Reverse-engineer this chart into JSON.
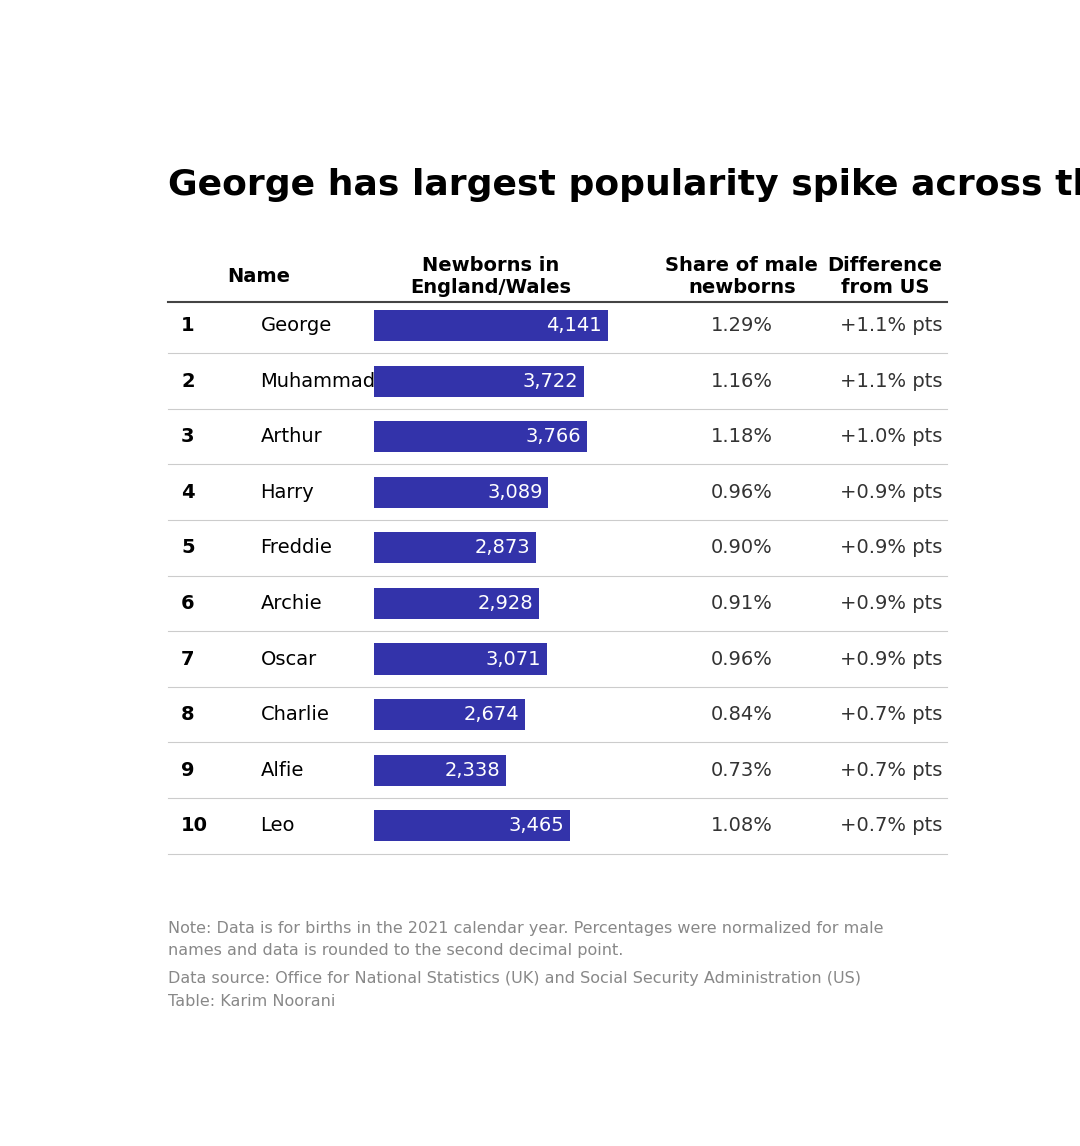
{
  "title": "George has largest popularity spike across the pond",
  "col_headers": [
    "Name",
    "Newborns in\nEngland/Wales",
    "Share of male\nnewborns",
    "Difference\nfrom US"
  ],
  "ranks": [
    1,
    2,
    3,
    4,
    5,
    6,
    7,
    8,
    9,
    10
  ],
  "names": [
    "George",
    "Muhammad",
    "Arthur",
    "Harry",
    "Freddie",
    "Archie",
    "Oscar",
    "Charlie",
    "Alfie",
    "Leo"
  ],
  "newborns": [
    4141,
    3722,
    3766,
    3089,
    2873,
    2928,
    3071,
    2674,
    2338,
    3465
  ],
  "share": [
    "1.29%",
    "1.16%",
    "1.18%",
    "0.96%",
    "0.90%",
    "0.91%",
    "0.96%",
    "0.84%",
    "0.73%",
    "1.08%"
  ],
  "difference": [
    "+1.1% pts",
    "+1.1% pts",
    "+1.0% pts",
    "+0.9% pts",
    "+0.9% pts",
    "+0.9% pts",
    "+0.9% pts",
    "+0.7% pts",
    "+0.7% pts",
    "+0.7% pts"
  ],
  "bar_color": "#3333aa",
  "bar_text_color": "#ffffff",
  "background_color": "#ffffff",
  "title_color": "#000000",
  "header_color": "#000000",
  "rank_color": "#000000",
  "name_color": "#000000",
  "data_color": "#333333",
  "note_color": "#888888",
  "line_color": "#cccccc",
  "header_line_color": "#444444",
  "note_text": "Note: Data is for births in the 2021 calendar year. Percentages were normalized for male\nnames and data is rounded to the second decimal point.",
  "source_text": "Data source: Office for National Statistics (UK) and Social Security Administration (US)\nTable: Karim Noorani",
  "max_bar_value": 4141,
  "title_fontsize": 26,
  "header_fontsize": 14,
  "data_fontsize": 14,
  "rank_fontsize": 14,
  "note_fontsize": 11.5
}
